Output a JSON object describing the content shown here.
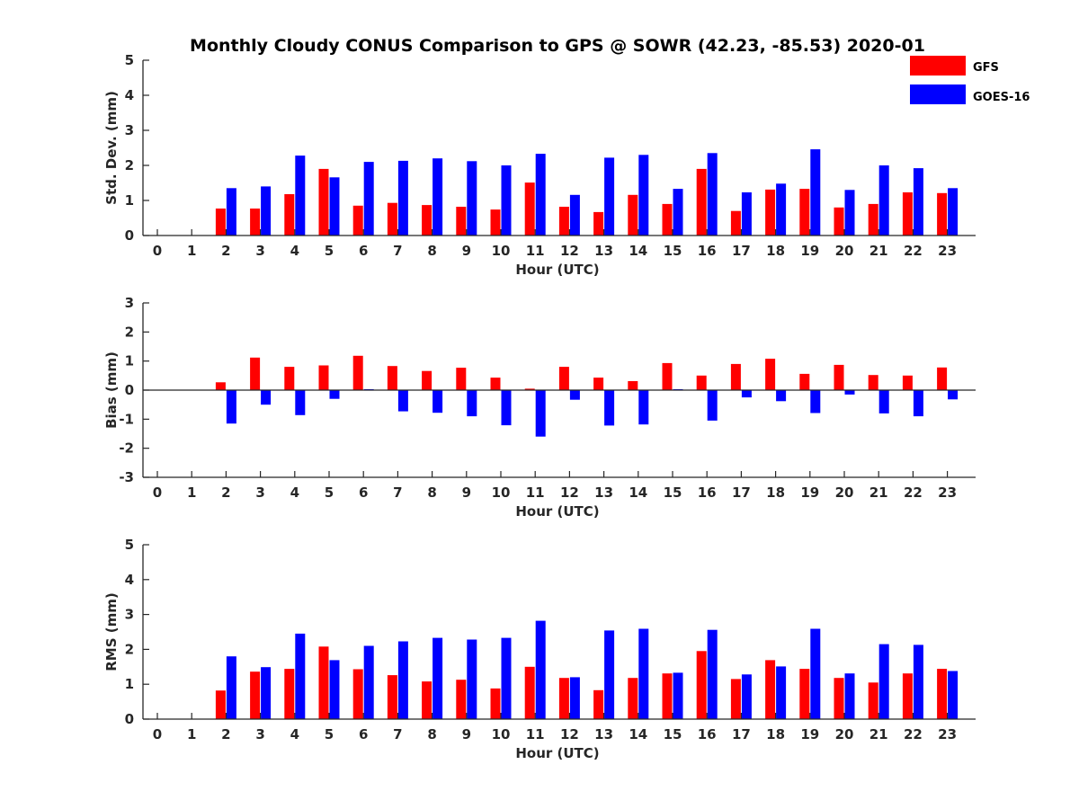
{
  "figure": {
    "title": "Monthly Cloudy CONUS Comparison to GPS @ SOWR (42.23, -85.53) 2020-01"
  },
  "legend": {
    "placement": "top-right",
    "entries": [
      {
        "label": "GFS",
        "color": "#ff0000"
      },
      {
        "label": "GOES-16",
        "color": "#0000ff"
      }
    ]
  },
  "chart_data": [
    {
      "type": "bar",
      "xlabel": "Hour (UTC)",
      "ylabel": "Std. Dev. (mm)",
      "ylim": [
        0,
        5
      ],
      "yticks": [
        "0",
        "1",
        "2",
        "3",
        "4",
        "5"
      ],
      "categories": [
        "0",
        "1",
        "2",
        "3",
        "4",
        "5",
        "6",
        "7",
        "8",
        "9",
        "10",
        "11",
        "12",
        "13",
        "14",
        "15",
        "16",
        "17",
        "18",
        "19",
        "20",
        "21",
        "22",
        "23"
      ],
      "series": [
        {
          "name": "GFS",
          "color": "#ff0000",
          "values": [
            null,
            null,
            0.77,
            0.77,
            1.18,
            1.9,
            0.85,
            0.93,
            0.87,
            0.82,
            0.74,
            1.51,
            0.82,
            0.67,
            1.16,
            0.9,
            1.9,
            0.7,
            1.31,
            1.33,
            0.8,
            0.9,
            1.23,
            1.21
          ]
        },
        {
          "name": "GOES-16",
          "color": "#0000ff",
          "values": [
            null,
            null,
            1.35,
            1.4,
            2.28,
            1.66,
            2.1,
            2.13,
            2.2,
            2.12,
            2.0,
            2.33,
            1.16,
            2.22,
            2.3,
            1.33,
            2.35,
            1.23,
            1.48,
            2.46,
            1.3,
            2.0,
            1.92,
            1.35
          ]
        }
      ]
    },
    {
      "type": "bar",
      "xlabel": "Hour (UTC)",
      "ylabel": "Bias (mm)",
      "ylim": [
        -3,
        3
      ],
      "yticks": [
        "-3",
        "-2",
        "-1",
        "0",
        "1",
        "2",
        "3"
      ],
      "categories": [
        "0",
        "1",
        "2",
        "3",
        "4",
        "5",
        "6",
        "7",
        "8",
        "9",
        "10",
        "11",
        "12",
        "13",
        "14",
        "15",
        "16",
        "17",
        "18",
        "19",
        "20",
        "21",
        "22",
        "23"
      ],
      "series": [
        {
          "name": "GFS",
          "color": "#ff0000",
          "values": [
            null,
            null,
            0.27,
            1.12,
            0.8,
            0.85,
            1.18,
            0.83,
            0.66,
            0.77,
            0.43,
            0.05,
            0.8,
            0.43,
            0.31,
            0.93,
            0.5,
            0.9,
            1.08,
            0.56,
            0.87,
            0.52,
            0.5,
            0.78
          ]
        },
        {
          "name": "GOES-16",
          "color": "#0000ff",
          "values": [
            null,
            null,
            -1.15,
            -0.5,
            -0.86,
            -0.3,
            0.03,
            -0.73,
            -0.78,
            -0.9,
            -1.21,
            -1.6,
            -0.33,
            -1.22,
            -1.18,
            0.03,
            -1.05,
            -0.25,
            -0.38,
            -0.79,
            -0.15,
            -0.8,
            -0.9,
            -0.32
          ]
        }
      ]
    },
    {
      "type": "bar",
      "xlabel": "Hour (UTC)",
      "ylabel": "RMS (mm)",
      "ylim": [
        0,
        5
      ],
      "yticks": [
        "0",
        "1",
        "2",
        "3",
        "4",
        "5"
      ],
      "categories": [
        "0",
        "1",
        "2",
        "3",
        "4",
        "5",
        "6",
        "7",
        "8",
        "9",
        "10",
        "11",
        "12",
        "13",
        "14",
        "15",
        "16",
        "17",
        "18",
        "19",
        "20",
        "21",
        "22",
        "23"
      ],
      "series": [
        {
          "name": "GFS",
          "color": "#ff0000",
          "values": [
            null,
            null,
            0.82,
            1.36,
            1.44,
            2.08,
            1.43,
            1.26,
            1.08,
            1.13,
            0.88,
            1.5,
            1.18,
            0.83,
            1.18,
            1.31,
            1.95,
            1.15,
            1.69,
            1.44,
            1.18,
            1.05,
            1.31,
            1.44
          ]
        },
        {
          "name": "GOES-16",
          "color": "#0000ff",
          "values": [
            null,
            null,
            1.8,
            1.49,
            2.45,
            1.69,
            2.1,
            2.23,
            2.33,
            2.28,
            2.33,
            2.82,
            1.2,
            2.54,
            2.59,
            1.33,
            2.56,
            1.28,
            1.51,
            2.59,
            1.31,
            2.15,
            2.13,
            1.38
          ]
        }
      ]
    }
  ]
}
